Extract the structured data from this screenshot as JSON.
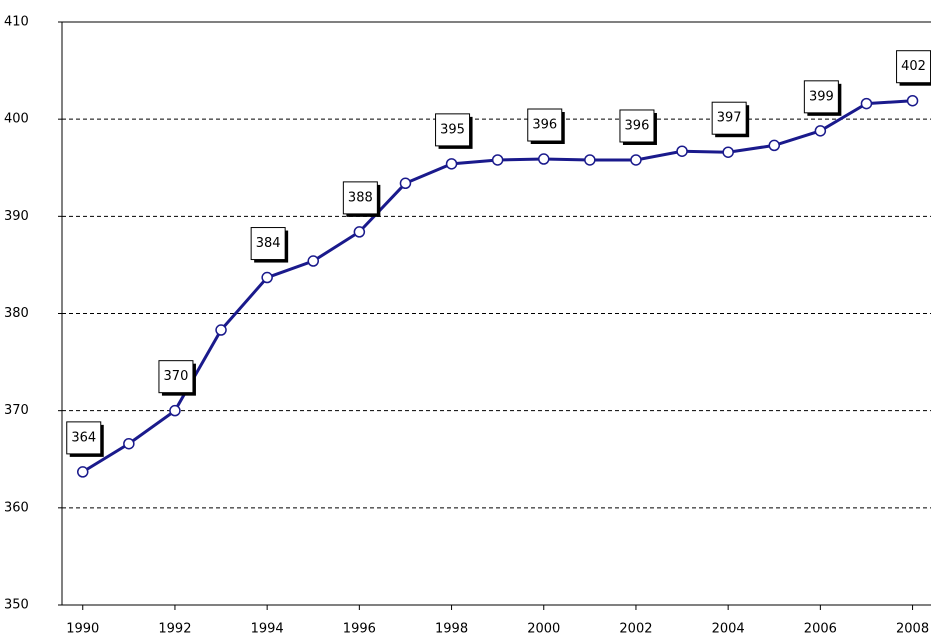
{
  "chart_data": {
    "type": "line",
    "x": [
      1990,
      1991,
      1992,
      1993,
      1994,
      1995,
      1996,
      1997,
      1998,
      1999,
      2000,
      2001,
      2002,
      2003,
      2004,
      2005,
      2006,
      2007,
      2008
    ],
    "series": [
      {
        "color": "#1a1a8c",
        "values": [
          363.7,
          366.6,
          370.0,
          378.3,
          383.7,
          385.4,
          388.4,
          393.4,
          395.4,
          395.8,
          395.9,
          395.8,
          395.8,
          396.7,
          396.6,
          397.3,
          398.8,
          401.6,
          401.9
        ],
        "value_labels": [
          "364",
          null,
          "370",
          null,
          "384",
          null,
          "388",
          null,
          "395",
          null,
          "396",
          null,
          "396",
          null,
          "397",
          null,
          "399",
          null,
          "402"
        ]
      }
    ],
    "xlim": [
      1989.55,
      2008.4
    ],
    "xticks": [
      1990,
      1992,
      1994,
      1996,
      1998,
      2000,
      2002,
      2004,
      2006,
      2008
    ],
    "ylim": [
      350,
      410
    ],
    "yticks": [
      350,
      360,
      370,
      380,
      390,
      400,
      410
    ],
    "grid": true
  }
}
